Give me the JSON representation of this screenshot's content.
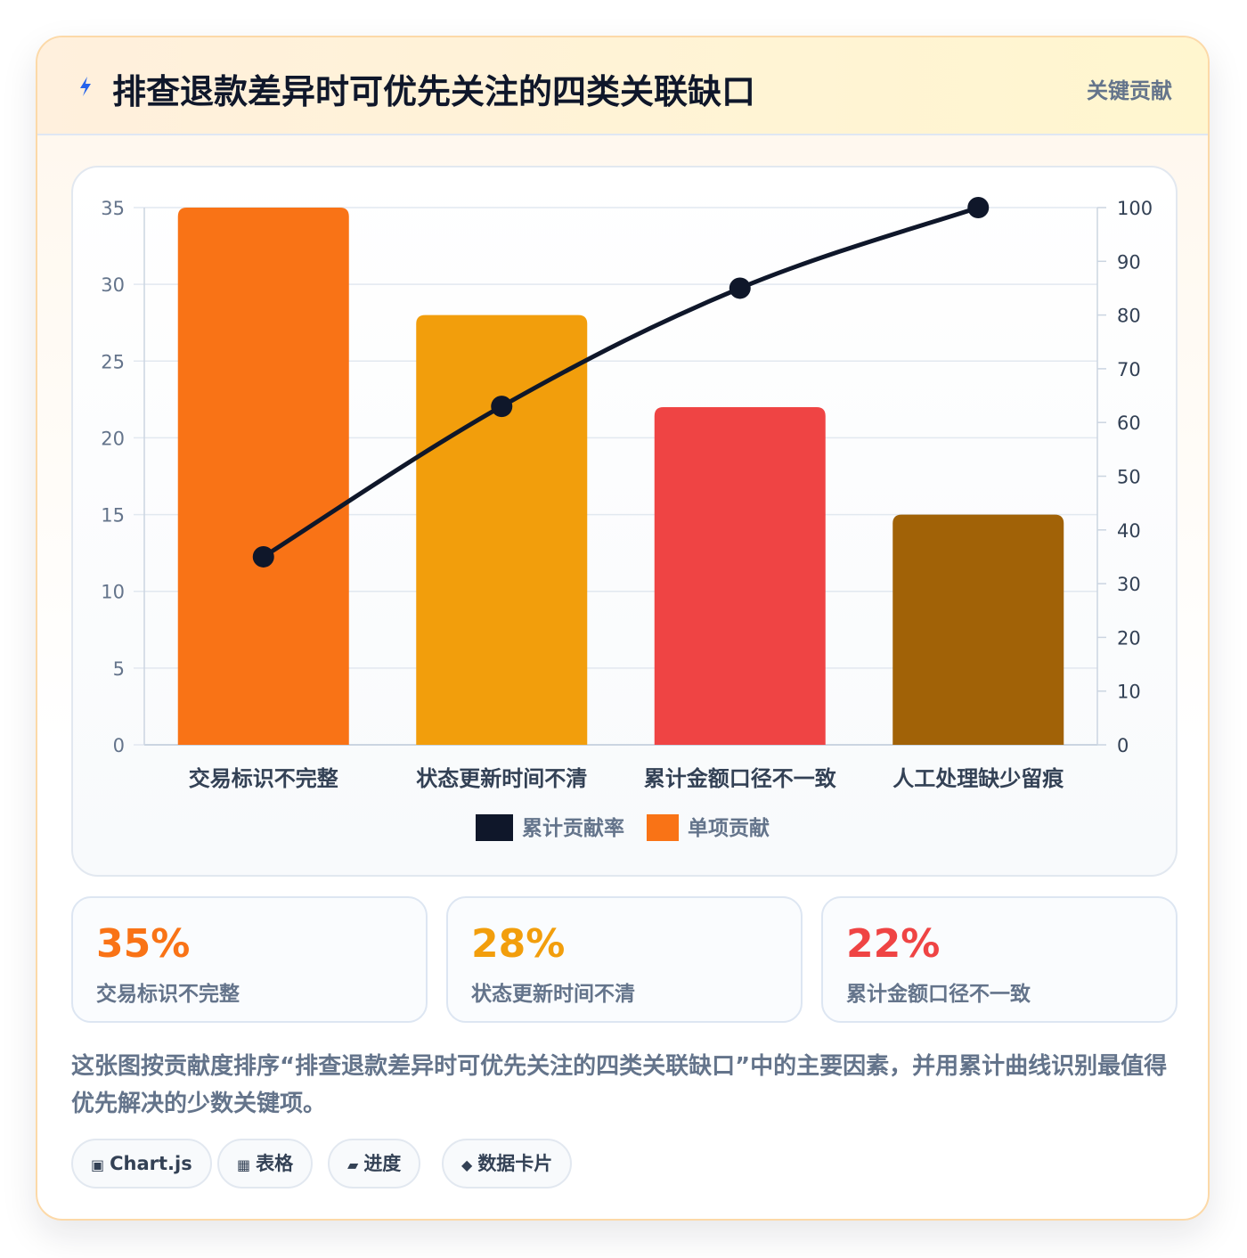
{
  "header": {
    "title": "排查退款差异时可优先关注的四类关联缺口",
    "tag": "关键贡献",
    "icon": "lightning-icon"
  },
  "chart_data": {
    "type": "bar",
    "categories": [
      "交易标识不完整",
      "状态更新时间不清",
      "累计金额口径不一致",
      "人工处理缺少留痕"
    ],
    "series": [
      {
        "name": "单项贡献",
        "type": "bar",
        "axis": "left",
        "values": [
          35,
          28,
          22,
          15
        ],
        "colors": [
          "#f97316",
          "#f29e0c",
          "#ef4444",
          "#a16207"
        ]
      },
      {
        "name": "累计贡献率",
        "type": "line",
        "axis": "right",
        "values": [
          35,
          63,
          85,
          100
        ],
        "color": "#0f172a"
      }
    ],
    "ylim": [
      0,
      35
    ],
    "y_ticks": [
      0,
      5,
      10,
      15,
      20,
      25,
      30,
      35
    ],
    "y2lim": [
      0,
      100
    ],
    "y2_ticks": [
      0,
      10,
      20,
      30,
      40,
      50,
      60,
      70,
      80,
      90,
      100
    ],
    "legend": {
      "placement": "bottom-center",
      "items": [
        {
          "label": "累计贡献率",
          "color": "#0f172a"
        },
        {
          "label": "单项贡献",
          "color": "#f97316"
        }
      ]
    },
    "grid": true
  },
  "stats": [
    {
      "value": "35%",
      "label": "交易标识不完整",
      "color": "#f97316"
    },
    {
      "value": "28%",
      "label": "状态更新时间不清",
      "color": "#f29e0c"
    },
    {
      "value": "22%",
      "label": "累计金额口径不一致",
      "color": "#ef4444"
    }
  ],
  "description": "这张图按贡献度排序“排查退款差异时可优先关注的四类关联缺口”中的主要因素，并用累计曲线识别最值得优先解决的少数关键项。",
  "chips": [
    {
      "icon": "▣",
      "label": "Chart.js",
      "icon_name": "chart-icon"
    },
    {
      "icon": "▦",
      "label": "表格",
      "icon_name": "table-icon"
    },
    {
      "icon": "▰",
      "label": "进度",
      "icon_name": "progress-icon"
    },
    {
      "icon": "◆",
      "label": "数据卡片",
      "icon_name": "card-icon"
    }
  ]
}
